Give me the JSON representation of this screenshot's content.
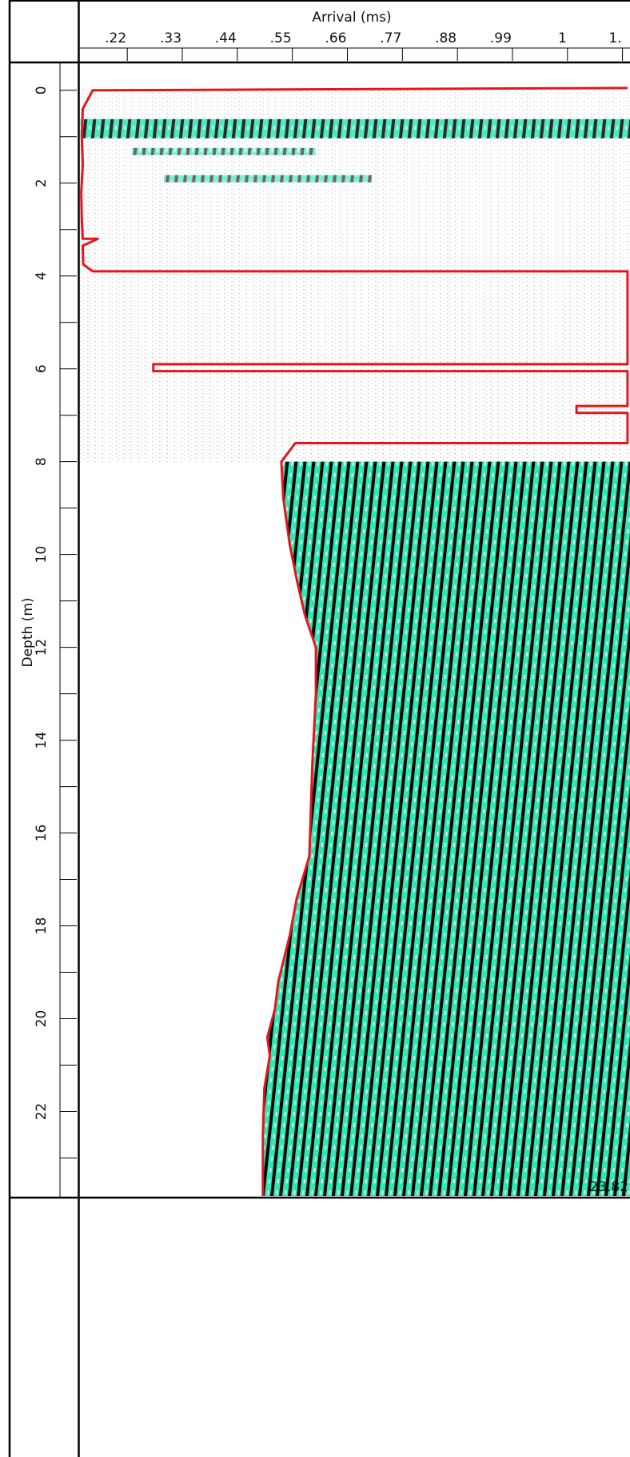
{
  "chart_data": {
    "type": "line",
    "xlabel": "Arrival (ms)",
    "ylabel": "Depth (m)",
    "xlim": [
      0.123,
      1.225
    ],
    "xticks": [
      {
        "value": 0.22,
        "label": ".22"
      },
      {
        "value": 0.33,
        "label": ".33"
      },
      {
        "value": 0.44,
        "label": ".44"
      },
      {
        "value": 0.55,
        "label": ".55"
      },
      {
        "value": 0.66,
        "label": ".66"
      },
      {
        "value": 0.77,
        "label": ".77"
      },
      {
        "value": 0.88,
        "label": ".88"
      },
      {
        "value": 0.99,
        "label": ".99"
      },
      {
        "value": 1.1,
        "label": "1"
      },
      {
        "value": 1.21,
        "label": "1."
      }
    ],
    "ylim": [
      -0.6,
      23.82
    ],
    "inverted": true,
    "yticks": [
      0,
      2,
      4,
      6,
      8,
      10,
      12,
      14,
      16,
      18,
      20,
      22
    ],
    "yminor": [
      1,
      3,
      5,
      7,
      9,
      11,
      13,
      15,
      17,
      19,
      21,
      23
    ],
    "series": [
      {
        "color": "#e8141c",
        "x": [
          1.22,
          0.151,
          0.131,
          0.129,
          0.131,
          0.128,
          0.129,
          0.131,
          0.161,
          0.131,
          0.132,
          0.151,
          1.22,
          1.22,
          0.272,
          0.272,
          1.22,
          1.22,
          1.118,
          1.118,
          1.22,
          1.22,
          0.556,
          0.528,
          0.532,
          0.545,
          0.56,
          0.575,
          0.597,
          0.597,
          0.59,
          0.587,
          0.584,
          0.559,
          0.545,
          0.522,
          0.515,
          0.5,
          0.505,
          0.494,
          0.491,
          0.491
        ],
        "values": [
          -0.05,
          0.0,
          0.4,
          1.0,
          1.6,
          2.2,
          2.8,
          3.2,
          3.2,
          3.35,
          3.75,
          3.9,
          3.9,
          5.9,
          5.9,
          6.05,
          6.05,
          6.8,
          6.8,
          6.95,
          6.95,
          7.6,
          7.6,
          8.0,
          8.8,
          9.8,
          10.6,
          11.3,
          12.0,
          13.0,
          14.5,
          15.5,
          16.5,
          17.4,
          18.2,
          19.2,
          19.8,
          20.4,
          20.8,
          21.5,
          22.5,
          23.82
        ]
      }
    ]
  }
}
